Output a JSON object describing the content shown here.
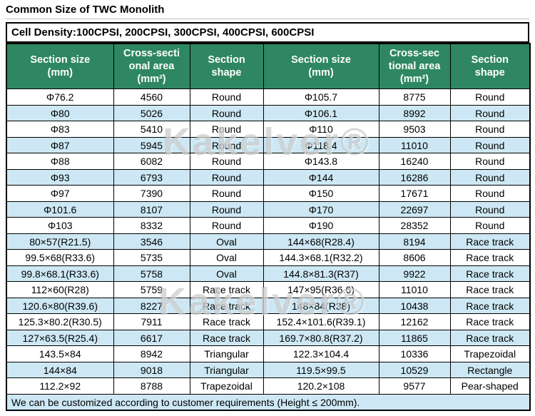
{
  "title": "Common Size of TWC Monolith",
  "cell_density": "Cell Density:100CPSI, 200CPSI, 300CPSI, 400CPSI, 600CPSI",
  "watermark": "Kakelver®",
  "footer": "We can be customized according to customer requirements (Height ≤ 200mm).",
  "colors": {
    "header_bg": "#2e8760",
    "header_text": "#ffffff",
    "row_alt": "#cde8f4",
    "border": "#000000"
  },
  "table": {
    "headers": [
      "Section size\n(mm)",
      "Cross-secti\nonal area\n(mm²)",
      "Section\nshape",
      "Section size\n(mm)",
      "Cross-sec\ntional area\n(mm²)",
      "Section\nshape"
    ],
    "rows": [
      [
        "Φ76.2",
        "4560",
        "Round",
        "Φ105.7",
        "8775",
        "Round"
      ],
      [
        "Φ80",
        "5026",
        "Round",
        "Φ106.1",
        "8992",
        "Round"
      ],
      [
        "Φ83",
        "5410",
        "Round",
        "Φ110",
        "9503",
        "Round"
      ],
      [
        "Φ87",
        "5945",
        "Round",
        "Φ118.4",
        "11010",
        "Round"
      ],
      [
        "Φ88",
        "6082",
        "Round",
        "Φ143.8",
        "16240",
        "Round"
      ],
      [
        "Φ93",
        "6793",
        "Round",
        "Φ144",
        "16286",
        "Round"
      ],
      [
        "Φ97",
        "7390",
        "Round",
        "Φ150",
        "17671",
        "Round"
      ],
      [
        "Φ101.6",
        "8107",
        "Round",
        "Φ170",
        "22697",
        "Round"
      ],
      [
        "Φ103",
        "8332",
        "Round",
        "Φ190",
        "28352",
        "Round"
      ],
      [
        "80×57(R21.5)",
        "3546",
        "Oval",
        "144×68(R28.4)",
        "8194",
        "Race track"
      ],
      [
        "99.5×68(R33.6)",
        "5735",
        "Oval",
        "144.3×68.1(R32.2)",
        "8606",
        "Race track"
      ],
      [
        "99.8×68.1(R33.6)",
        "5758",
        "Oval",
        "144.8×81.3(R37)",
        "9922",
        "Race track"
      ],
      [
        "112×60(R28)",
        "5759",
        "Race track",
        "147×95(R36.6)",
        "11010",
        "Race track"
      ],
      [
        "120.6×80(R39.6)",
        "8227",
        "Race track",
        "148×84(R38)",
        "10438",
        "Race track"
      ],
      [
        "125.3×80.2(R30.5)",
        "7911",
        "Race track",
        "152.4×101.6(R39.1)",
        "12162",
        "Race track"
      ],
      [
        "127×63.5(R25.4)",
        "6617",
        "Race track",
        "169.7×80.8(R37.2)",
        "11865",
        "Race track"
      ],
      [
        "143.5×84",
        "8942",
        "Triangular",
        "122.3×104.4",
        "10336",
        "Trapezoidal"
      ],
      [
        "144×84",
        "9018",
        "Triangular",
        "119.5×99.5",
        "10529",
        "Rectangle"
      ],
      [
        "112.2×92",
        "8788",
        "Trapezoidal",
        "120.2×108",
        "9577",
        "Pear-shaped"
      ]
    ]
  }
}
